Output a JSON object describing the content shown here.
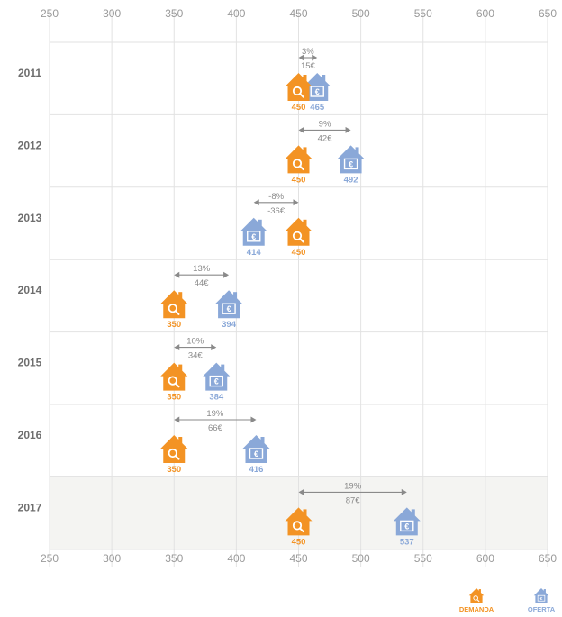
{
  "chart_data": {
    "type": "scatter",
    "title": "",
    "xlabel": "",
    "ylabel": "",
    "xlim": [
      250,
      650
    ],
    "x_ticks": [
      250,
      300,
      350,
      400,
      450,
      500,
      550,
      600,
      650
    ],
    "grid": true,
    "categories": [
      "2011",
      "2012",
      "2013",
      "2014",
      "2015",
      "2016",
      "2017"
    ],
    "highlighted_category": "2017",
    "series": [
      {
        "name": "DEMANDA",
        "values": [
          450,
          450,
          450,
          350,
          350,
          350,
          450
        ],
        "labels": [
          "450",
          "450",
          "450",
          "350",
          "350",
          "350",
          "450"
        ]
      },
      {
        "name": "OFERTA",
        "values": [
          465,
          492,
          414,
          394,
          384,
          416,
          537
        ],
        "labels": [
          "465",
          "492",
          "414",
          "394",
          "384",
          "416",
          "537"
        ]
      }
    ],
    "differences": [
      {
        "pct": "3%",
        "abs": "15€"
      },
      {
        "pct": "9%",
        "abs": "42€"
      },
      {
        "pct": "-8%",
        "abs": "-36€"
      },
      {
        "pct": "13%",
        "abs": "44€"
      },
      {
        "pct": "10%",
        "abs": "34€"
      },
      {
        "pct": "19%",
        "abs": "66€"
      },
      {
        "pct": "19%",
        "abs": "87€"
      }
    ],
    "legend": {
      "position": "bottom-right",
      "entries": [
        "DEMANDA",
        "OFERTA"
      ]
    }
  },
  "colors": {
    "demanda": "#f39324",
    "oferta": "#8aa8d8",
    "grid": "#e2e2e2",
    "highlight_band": "#f4f4f2",
    "arrow": "#8a8a8a"
  },
  "icons": {
    "demanda": "house-search-icon",
    "oferta": "house-euro-icon"
  }
}
